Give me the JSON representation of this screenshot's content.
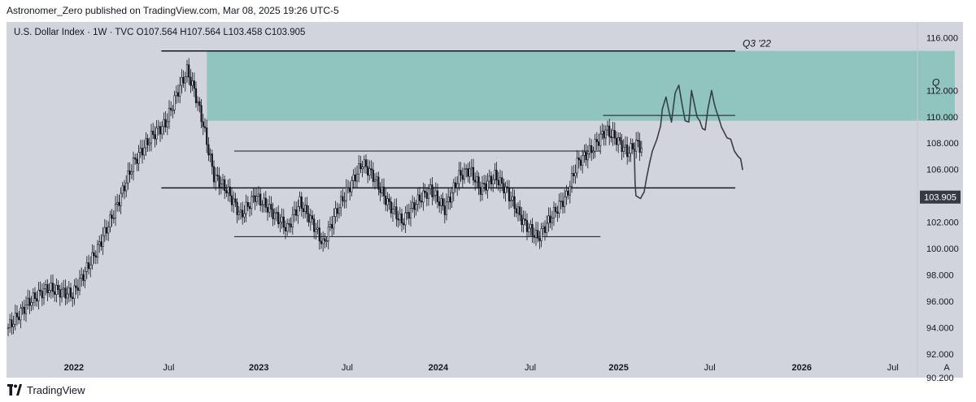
{
  "publisher": "Astronomer_Zero published on TradingView.com, Mar 08, 2025 19:26 UTC-5",
  "footer": {
    "brand": "TradingView"
  },
  "colors": {
    "up": "#ffffff",
    "down": "#131722",
    "zone": "#8fc4bf",
    "frame": "#d1d4dc",
    "line": "#131722",
    "price_tag": "#363a45"
  },
  "chart_data": {
    "type": "candlestick",
    "symbol": "U.S. Dollar Index",
    "interval": "1W",
    "source": "TVC",
    "ohlc_label": "O107.564  H107.564  L103.458  C103.905",
    "last_price": "103.905",
    "y_ticks": [
      "116.000",
      "112.000",
      "110.000",
      "108.000",
      "106.000",
      "102.000",
      "100.000",
      "98.000",
      "96.000",
      "94.000",
      "92.000",
      "90.200"
    ],
    "x_ticks": [
      "2022",
      "Jul",
      "2023",
      "Jul",
      "2024",
      "Jul",
      "2025",
      "Jul",
      "2026",
      "Jul"
    ],
    "auto_scale_label": "A",
    "annotations": [
      "Q3 '22",
      "Q"
    ],
    "ylim": [
      90.2,
      117.2
    ],
    "start_price": 94.0,
    "anchors": [
      [
        0,
        94.0
      ],
      [
        12,
        96.0
      ],
      [
        22,
        97.0
      ],
      [
        36,
        96.5
      ],
      [
        50,
        100.0
      ],
      [
        60,
        103.0
      ],
      [
        70,
        106.5
      ],
      [
        80,
        108.5
      ],
      [
        88,
        109.5
      ],
      [
        95,
        112.0
      ],
      [
        100,
        113.5
      ],
      [
        104,
        112.0
      ],
      [
        108,
        110.0
      ],
      [
        115,
        105.5
      ],
      [
        122,
        104.5
      ],
      [
        130,
        102.5
      ],
      [
        138,
        104.0
      ],
      [
        146,
        103.0
      ],
      [
        156,
        101.5
      ],
      [
        163,
        103.5
      ],
      [
        170,
        102.0
      ],
      [
        176,
        100.3
      ],
      [
        184,
        103.0
      ],
      [
        192,
        105.0
      ],
      [
        198,
        106.5
      ],
      [
        204,
        105.5
      ],
      [
        212,
        103.5
      ],
      [
        220,
        102.0
      ],
      [
        228,
        103.5
      ],
      [
        236,
        104.5
      ],
      [
        244,
        103.0
      ],
      [
        252,
        105.5
      ],
      [
        258,
        106.0
      ],
      [
        264,
        104.5
      ],
      [
        272,
        105.5
      ],
      [
        278,
        104.5
      ],
      [
        288,
        102.0
      ],
      [
        296,
        100.8
      ],
      [
        304,
        102.5
      ],
      [
        312,
        104.0
      ],
      [
        318,
        106.5
      ],
      [
        326,
        107.5
      ],
      [
        334,
        109.0
      ],
      [
        340,
        108.3
      ],
      [
        346,
        107.3
      ],
      [
        352,
        108.0
      ],
      [
        354,
        107.5
      ]
    ],
    "zone_top": 115.0,
    "zone_bottom": 109.7,
    "levels": [
      {
        "y": 115.0,
        "x_from": 0.17,
        "x_to": 0.8
      },
      {
        "y": 104.6,
        "x_from": 0.17,
        "x_to": 0.8
      },
      {
        "y": 100.9,
        "x_from": 0.25,
        "x_to": 0.652
      },
      {
        "y": 107.4,
        "x_from": 0.25,
        "x_to": 0.652
      },
      {
        "y": 110.1,
        "x_from": 0.655,
        "x_to": 0.8
      }
    ],
    "projection": [
      [
        0.689,
        108.0
      ],
      [
        0.69,
        105.0
      ],
      [
        0.691,
        104.0
      ],
      [
        0.696,
        103.8
      ],
      [
        0.7,
        104.3
      ],
      [
        0.703,
        105.5
      ],
      [
        0.706,
        106.5
      ],
      [
        0.709,
        107.4
      ],
      [
        0.714,
        108.3
      ],
      [
        0.718,
        109.3
      ],
      [
        0.72,
        110.6
      ],
      [
        0.724,
        111.5
      ],
      [
        0.727,
        110.5
      ],
      [
        0.73,
        109.6
      ],
      [
        0.734,
        111.8
      ],
      [
        0.738,
        112.4
      ],
      [
        0.742,
        110.8
      ],
      [
        0.745,
        109.7
      ],
      [
        0.749,
        109.6
      ],
      [
        0.752,
        112.0
      ],
      [
        0.755,
        111.0
      ],
      [
        0.758,
        110.0
      ],
      [
        0.761,
        109.7
      ],
      [
        0.764,
        109.1
      ],
      [
        0.767,
        109.0
      ],
      [
        0.77,
        110.6
      ],
      [
        0.774,
        112.0
      ],
      [
        0.777,
        111.0
      ],
      [
        0.779,
        110.5
      ],
      [
        0.782,
        109.9
      ],
      [
        0.785,
        109.2
      ],
      [
        0.788,
        108.8
      ],
      [
        0.791,
        108.4
      ],
      [
        0.795,
        108.3
      ],
      [
        0.799,
        107.4
      ],
      [
        0.803,
        107.0
      ],
      [
        0.806,
        106.8
      ],
      [
        0.808,
        106.0
      ]
    ]
  }
}
